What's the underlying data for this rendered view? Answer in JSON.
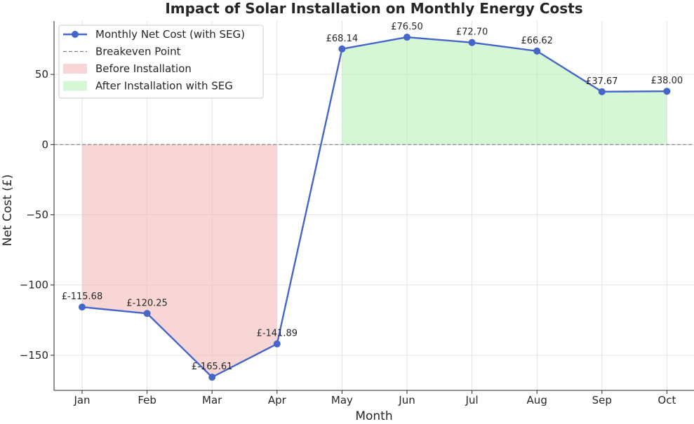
{
  "chart_data": {
    "type": "line",
    "title": "Impact of Solar Installation on Monthly Energy Costs",
    "xlabel": "Month",
    "ylabel": "Net Cost (£)",
    "categories": [
      "Jan",
      "Feb",
      "Mar",
      "Apr",
      "May",
      "Jun",
      "Jul",
      "Aug",
      "Sep",
      "Oct"
    ],
    "series": [
      {
        "name": "Monthly Net Cost (with SEG)",
        "values": [
          -115.68,
          -120.25,
          -165.61,
          -141.89,
          68.14,
          76.5,
          72.7,
          66.62,
          37.67,
          38.0
        ],
        "labels": [
          "£-115.68",
          "£-120.25",
          "£-165.61",
          "£-141.89",
          "£68.14",
          "£76.50",
          "£72.70",
          "£66.62",
          "£37.67",
          "£38.00"
        ],
        "color": "#4566c8"
      }
    ],
    "reference_line": {
      "name": "Breakeven Point",
      "value": 0,
      "color": "#808080"
    },
    "shaded_regions": [
      {
        "name": "Before Installation",
        "from": "Jan",
        "to": "Apr",
        "color": "#f4b4b4"
      },
      {
        "name": "After Installation with SEG",
        "from": "May",
        "to": "Oct",
        "color": "#b4f0b4"
      }
    ],
    "y_ticks": [
      50,
      0,
      -50,
      -100,
      -150
    ],
    "y_tick_labels": [
      "50",
      "0",
      "−50",
      "−100",
      "−150"
    ],
    "ylim": [
      -175,
      88
    ],
    "grid": true,
    "legend_position": "top-left"
  }
}
